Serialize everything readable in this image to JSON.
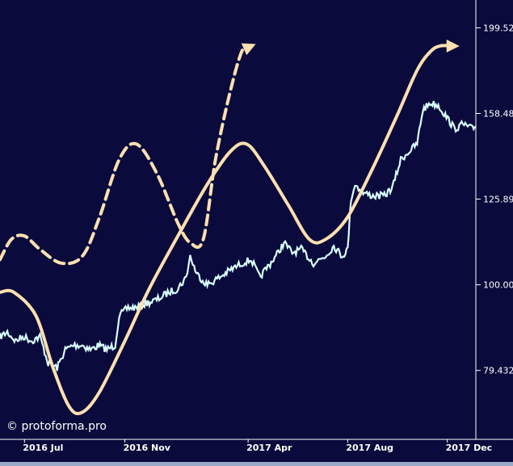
{
  "chart_data": {
    "type": "line",
    "title": "",
    "xlabel": "",
    "ylabel": "",
    "y_scale": "log",
    "y_ticks": [
      "79.432",
      "100.00",
      "125.89",
      "158.48",
      "199.52"
    ],
    "x_ticks": [
      "2016 Jul",
      "2016 Nov",
      "2017 Apr",
      "2017 Aug",
      "2017 Dec"
    ],
    "xlim": [
      "2016-06-01",
      "2018-01-05"
    ],
    "ylim": [
      66,
      215
    ],
    "grid": false,
    "legend": "none",
    "colors": {
      "background": "#0a0a3c",
      "price": "#d8ffff",
      "cycle": "#ffe0b0",
      "axis": "#ffffff",
      "bottom_bar": "#9aa8c8"
    },
    "series": [
      {
        "style": "solid",
        "color": "#d8ffff",
        "points": [
          [
            "2016-06-01",
            87
          ],
          [
            "2016-06-10",
            88
          ],
          [
            "2016-06-20",
            86
          ],
          [
            "2016-06-30",
            87
          ],
          [
            "2016-07-10",
            86
          ],
          [
            "2016-07-20",
            87
          ],
          [
            "2016-07-30",
            81
          ],
          [
            "2016-08-10",
            80
          ],
          [
            "2016-08-20",
            84
          ],
          [
            "2016-08-30",
            85
          ],
          [
            "2016-09-10",
            85
          ],
          [
            "2016-09-20",
            84
          ],
          [
            "2016-09-30",
            85
          ],
          [
            "2016-10-10",
            84
          ],
          [
            "2016-10-20",
            85
          ],
          [
            "2016-10-25",
            92
          ],
          [
            "2016-11-05",
            94
          ],
          [
            "2016-11-15",
            94
          ],
          [
            "2016-11-25",
            95
          ],
          [
            "2016-12-10",
            96
          ],
          [
            "2016-12-25",
            98
          ],
          [
            "2017-01-05",
            99
          ],
          [
            "2017-01-15",
            102
          ],
          [
            "2017-01-20",
            108
          ],
          [
            "2017-01-28",
            103
          ],
          [
            "2017-02-10",
            100
          ],
          [
            "2017-02-25",
            102
          ],
          [
            "2017-03-10",
            104
          ],
          [
            "2017-03-25",
            106
          ],
          [
            "2017-04-05",
            107
          ],
          [
            "2017-04-15",
            102
          ],
          [
            "2017-04-25",
            105
          ],
          [
            "2017-05-05",
            108
          ],
          [
            "2017-05-15",
            112
          ],
          [
            "2017-05-25",
            109
          ],
          [
            "2017-06-05",
            110
          ],
          [
            "2017-06-20",
            106
          ],
          [
            "2017-07-05",
            108
          ],
          [
            "2017-07-15",
            111
          ],
          [
            "2017-07-25",
            108
          ],
          [
            "2017-08-01",
            110
          ],
          [
            "2017-08-05",
            126
          ],
          [
            "2017-08-10",
            131
          ],
          [
            "2017-08-20",
            128
          ],
          [
            "2017-09-01",
            127
          ],
          [
            "2017-09-15",
            127
          ],
          [
            "2017-09-25",
            130
          ],
          [
            "2017-10-05",
            140
          ],
          [
            "2017-10-15",
            143
          ],
          [
            "2017-10-25",
            146
          ],
          [
            "2017-11-01",
            160
          ],
          [
            "2017-11-10",
            163
          ],
          [
            "2017-11-20",
            162
          ],
          [
            "2017-11-30",
            157
          ],
          [
            "2017-12-10",
            152
          ],
          [
            "2017-12-20",
            154
          ],
          [
            "2018-01-01",
            152
          ],
          [
            "2018-01-05",
            153
          ]
        ]
      },
      {
        "style": "solid",
        "color": "#ffe0b0",
        "points": [
          [
            "2016-06-01",
            98
          ],
          [
            "2016-06-18",
            98
          ],
          [
            "2016-07-15",
            92
          ],
          [
            "2016-08-05",
            80
          ],
          [
            "2016-08-25",
            72
          ],
          [
            "2016-09-10",
            71
          ],
          [
            "2016-10-01",
            75
          ],
          [
            "2016-11-01",
            86
          ],
          [
            "2016-12-01",
            99
          ],
          [
            "2017-01-05",
            114
          ],
          [
            "2017-02-10",
            131
          ],
          [
            "2017-03-10",
            143
          ],
          [
            "2017-03-30",
            146
          ],
          [
            "2017-04-20",
            138
          ],
          [
            "2017-05-20",
            124
          ],
          [
            "2017-06-15",
            113
          ],
          [
            "2017-07-05",
            113
          ],
          [
            "2017-08-01",
            120
          ],
          [
            "2017-09-01",
            137
          ],
          [
            "2017-10-01",
            158
          ],
          [
            "2017-10-25",
            178
          ],
          [
            "2017-11-10",
            187
          ],
          [
            "2017-11-22",
            190
          ],
          [
            "2017-12-10",
            190
          ]
        ]
      },
      {
        "style": "dashed",
        "color": "#ffe0b0",
        "points": [
          [
            "2016-06-01",
            107
          ],
          [
            "2016-06-15",
            113
          ],
          [
            "2016-07-01",
            114
          ],
          [
            "2016-07-20",
            110
          ],
          [
            "2016-08-15",
            106
          ],
          [
            "2016-09-10",
            108
          ],
          [
            "2016-10-01",
            120
          ],
          [
            "2016-10-25",
            140
          ],
          [
            "2016-11-15",
            146
          ],
          [
            "2016-12-10",
            135
          ],
          [
            "2017-01-05",
            118
          ],
          [
            "2017-01-20",
            112
          ],
          [
            "2017-02-05",
            113
          ],
          [
            "2017-02-20",
            140
          ],
          [
            "2017-03-10",
            168
          ],
          [
            "2017-03-25",
            188
          ],
          [
            "2017-04-05",
            190
          ]
        ]
      }
    ]
  },
  "watermark": "© protoforma.pro"
}
